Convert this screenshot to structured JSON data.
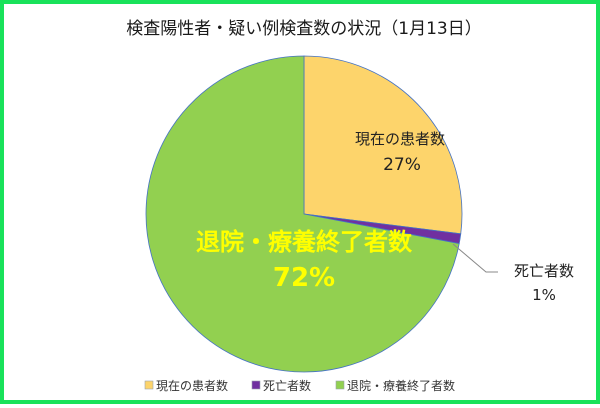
{
  "chart_data": {
    "type": "pie",
    "title": "検査陽性者・疑い例検査数の状況（1月13日）",
    "slices": [
      {
        "label": "現在の患者数",
        "value": 27,
        "value_label": "27%",
        "color": "#fdd46b"
      },
      {
        "label": "死亡者数",
        "value": 1,
        "value_label": "1%",
        "color": "#7030a0"
      },
      {
        "label": "退院・療養終了者数",
        "value": 72,
        "value_label": "72%",
        "color": "#92d050"
      }
    ],
    "legend_position": "bottom",
    "start_angle": "12 o'clock, clockwise"
  }
}
